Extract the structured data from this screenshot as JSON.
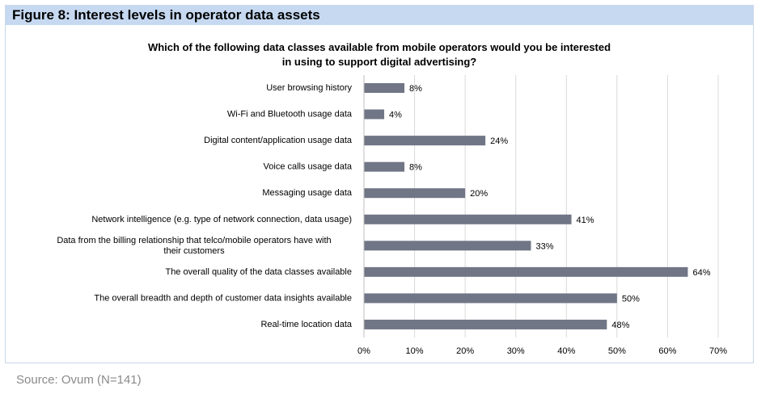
{
  "figure": {
    "title": "Figure 8: Interest levels in operator data assets",
    "question_line1": "Which of the following data classes available from mobile operators would you be interested",
    "question_line2": "in using to support digital advertising?",
    "source": "Source: Ovum (N=141)"
  },
  "colors": {
    "bar": "#707685",
    "header_band": "#c6d9f1",
    "grid": "#d9d9d9"
  },
  "chart_data": {
    "type": "bar",
    "orientation": "horizontal",
    "categories": [
      "User browsing history",
      "Wi-Fi and Bluetooth usage data",
      "Digital content/application usage data",
      "Voice calls usage data",
      "Messaging usage data",
      "Network intelligence (e.g. type of network connection, data usage)",
      [
        "Data from the billing relationship that telco/mobile operators have with",
        "their customers"
      ],
      "The overall quality of the data classes available",
      "The overall breadth and depth of customer data insights available",
      "Real-time location data"
    ],
    "values": [
      8,
      4,
      24,
      8,
      20,
      41,
      33,
      64,
      50,
      48
    ],
    "value_labels": [
      "8%",
      "4%",
      "24%",
      "8%",
      "20%",
      "41%",
      "33%",
      "64%",
      "50%",
      "48%"
    ],
    "xlim": [
      0,
      70
    ],
    "xticks": [
      0,
      10,
      20,
      30,
      40,
      50,
      60,
      70
    ],
    "xtick_labels": [
      "0%",
      "10%",
      "20%",
      "30%",
      "40%",
      "50%",
      "60%",
      "70%"
    ],
    "grid": true,
    "legend": "none"
  }
}
